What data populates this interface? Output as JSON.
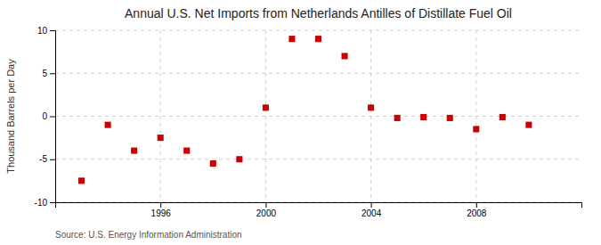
{
  "chart_data": {
    "type": "scatter",
    "title": "Annual U.S. Net Imports from Netherlands Antilles of Distillate Fuel Oil",
    "ylabel": "Thousand Barrels per Day",
    "source": "Source: U.S. Energy Information Administration",
    "x": [
      1993,
      1994,
      1995,
      1996,
      1997,
      1998,
      1999,
      2000,
      2001,
      2002,
      2003,
      2004,
      2005,
      2006,
      2007,
      2008,
      2009,
      2010
    ],
    "values": [
      -7.5,
      -1.0,
      -4.0,
      -2.5,
      -4.0,
      -5.5,
      -5.0,
      1.0,
      9.0,
      9.0,
      7.0,
      1.0,
      -0.2,
      -0.1,
      -0.2,
      -1.5,
      -0.1,
      -1.0
    ],
    "color": "#CC0000",
    "marker": "square",
    "xlim": [
      1992,
      2012
    ],
    "ylim": [
      -10,
      10
    ],
    "xticks": [
      1996,
      2000,
      2004,
      2008
    ],
    "yticks": [
      -10,
      -5,
      0,
      5,
      10
    ],
    "grid": true
  }
}
